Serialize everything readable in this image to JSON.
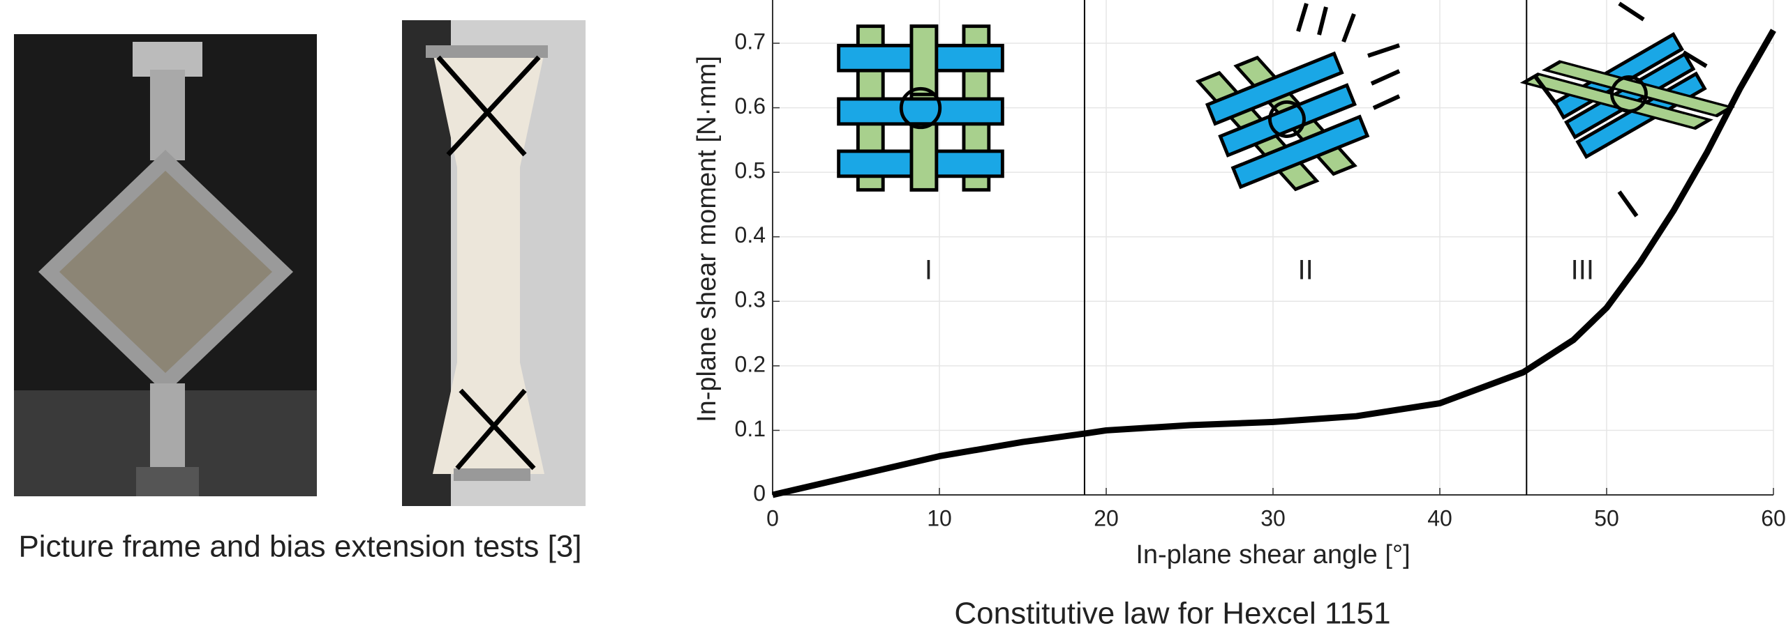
{
  "figure": {
    "left_caption": "Picture frame and bias extension tests [3]"
  },
  "chart_data": {
    "type": "line",
    "caption": "Constitutive law for Hexcel 1151",
    "x_label": "In-plane shear angle [°]",
    "y_label": "In-plane shear moment [N·mm]",
    "x": [
      0,
      5,
      10,
      15,
      18.7,
      20,
      25,
      30,
      35,
      40,
      45,
      48,
      50,
      52,
      54,
      56,
      58,
      60
    ],
    "series": [
      {
        "color": "#000000",
        "values": [
          0,
          0.03,
          0.06,
          0.082,
          0.095,
          0.1,
          0.108,
          0.113,
          0.122,
          0.142,
          0.19,
          0.24,
          0.29,
          0.36,
          0.44,
          0.53,
          0.63,
          0.72
        ]
      }
    ],
    "region_bounds": [
      18.7,
      45.2
    ],
    "region_labels": [
      "I",
      "II",
      "III"
    ],
    "xlim": [
      0,
      60
    ],
    "xticks": [
      0,
      10,
      20,
      30,
      40,
      50,
      60
    ],
    "ylim": [
      0,
      0.767
    ],
    "yticks": [
      0,
      0.1,
      0.2,
      0.3,
      0.4,
      0.5,
      0.6,
      0.7
    ],
    "grid": true
  }
}
